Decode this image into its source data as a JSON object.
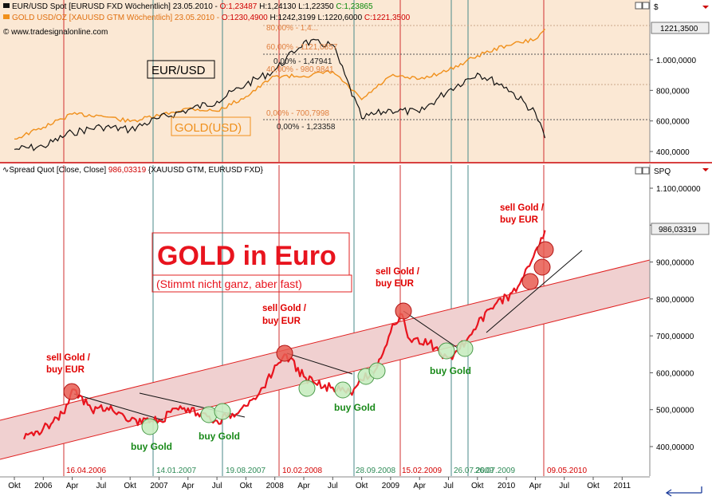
{
  "top_pane": {
    "legend_eur": "EUR/USD Spot [EURUSD FXD  Wöchentlich] 23.05.2010 - ",
    "legend_eur_o": "O:1,23487",
    "legend_eur_h": " H:1,24130",
    "legend_eur_l": " L:1,22350",
    "legend_eur_c": " C:1,23865",
    "legend_gold": "GOLD USD/OZ [XAUUSD GTM  Wöchentlich] 23.05.2010 - ",
    "legend_gold_o": "O:1230,4900",
    "legend_gold_h": " H:1242,3199",
    "legend_gold_l": " L:1220,6000",
    "legend_gold_c": " C:1221,3500",
    "copyright": "© www.tradesignalonline.com",
    "label_eur": "EUR/USD",
    "label_gold": "GOLD(USD)",
    "axis_unit": "$",
    "last_value": "1221,3500",
    "y_ticks": [
      "1.000,0000",
      "800,0000",
      "600,0000",
      "400,0000"
    ],
    "fib_labels": [
      "80,00% - 1,4...",
      "60,00% - 1121,0857",
      "0,00% - 1,47941",
      "40,00% - 980,9841",
      "0,00% - 700,7998",
      "0,00% - 1,23358"
    ]
  },
  "bottom_pane": {
    "header": "Spread Quot [Close, Close] ",
    "header_value": "986,03319",
    "header_suffix": " {XAUUSD GTM, EURUSD FXD}",
    "axis_unit": "SPQ",
    "last_value": "986,03319",
    "y_ticks": [
      "1.100,00000",
      "1.000,00000",
      "900,00000",
      "800,00000",
      "700,00000",
      "600,00000",
      "500,00000",
      "400,00000"
    ],
    "title": "GOLD in Euro",
    "subtitle": "(Stimmt nicht ganz, aber fast)",
    "sell_labels": [
      {
        "line1": "sell Gold /",
        "line2": "buy EUR"
      },
      {
        "line1": "sell Gold /",
        "line2": "buy EUR"
      },
      {
        "line1": "sell Gold /",
        "line2": "buy EUR"
      },
      {
        "line1": "sell Gold /",
        "line2": "buy EUR"
      }
    ],
    "buy_labels": [
      "buy Gold",
      "buy Gold",
      "buy Gold",
      "buy Gold"
    ],
    "date_labels_red": [
      "16.04.2006",
      "10.02.2008",
      "15.02.2009",
      "09.05.2010"
    ],
    "date_labels_green": [
      "14.01.2007",
      "19.08.2007",
      "28.09.2008",
      "26.07.2009",
      "26.07.2009"
    ]
  },
  "x_axis": {
    "labels": [
      "Okt",
      "2006",
      "Apr",
      "Jul",
      "Okt",
      "2007",
      "Apr",
      "Jul",
      "Okt",
      "2008",
      "Apr",
      "Jul",
      "Okt",
      "2009",
      "Apr",
      "Jul",
      "Okt",
      "2010",
      "Apr",
      "Jul",
      "Okt",
      "2011"
    ]
  },
  "colors": {
    "eurusd": "#111111",
    "gold": "#f0901c",
    "spread": "#e8141e",
    "channel": "#e02020",
    "buy": "#4aa84a",
    "sell": "#e03030"
  },
  "chart_data": {
    "type": "line",
    "top": {
      "series": [
        {
          "name": "EUR/USD Spot",
          "x": [
            "2005-10",
            "2006-01",
            "2006-04",
            "2006-07",
            "2006-10",
            "2007-01",
            "2007-04",
            "2007-07",
            "2007-10",
            "2008-01",
            "2008-04",
            "2008-07",
            "2008-10",
            "2009-01",
            "2009-04",
            "2009-07",
            "2009-10",
            "2010-01",
            "2010-04",
            "2010-05"
          ],
          "y": [
            1.2,
            1.21,
            1.26,
            1.28,
            1.27,
            1.31,
            1.34,
            1.37,
            1.43,
            1.48,
            1.58,
            1.57,
            1.31,
            1.34,
            1.33,
            1.41,
            1.47,
            1.42,
            1.33,
            1.24
          ]
        },
        {
          "name": "GOLD USD/OZ",
          "x": [
            "2005-10",
            "2006-01",
            "2006-04",
            "2006-07",
            "2006-10",
            "2007-01",
            "2007-04",
            "2007-07",
            "2007-10",
            "2008-01",
            "2008-04",
            "2008-07",
            "2008-10",
            "2009-01",
            "2009-04",
            "2009-07",
            "2009-10",
            "2010-01",
            "2010-04",
            "2010-05"
          ],
          "y": [
            470,
            550,
            640,
            630,
            590,
            630,
            680,
            660,
            760,
            900,
            900,
            930,
            740,
            900,
            880,
            940,
            1040,
            1110,
            1150,
            1221
          ]
        }
      ]
    },
    "bottom": {
      "series": [
        {
          "name": "Spread Quot",
          "x": [
            "2005-11",
            "2006-01",
            "2006-03",
            "2006-04",
            "2006-06",
            "2006-08",
            "2006-10",
            "2006-12",
            "2007-01",
            "2007-03",
            "2007-05",
            "2007-07",
            "2007-08",
            "2007-10",
            "2007-12",
            "2008-01",
            "2008-02",
            "2008-04",
            "2008-06",
            "2008-08",
            "2008-09",
            "2008-10",
            "2008-11",
            "2008-12",
            "2009-01",
            "2009-02",
            "2009-03",
            "2009-05",
            "2009-07",
            "2009-08",
            "2009-10",
            "2009-12",
            "2010-02",
            "2010-03",
            "2010-04",
            "2010-05"
          ],
          "y": [
            420,
            450,
            490,
            555,
            500,
            510,
            470,
            465,
            470,
            500,
            490,
            470,
            480,
            510,
            560,
            620,
            650,
            590,
            560,
            560,
            540,
            580,
            600,
            640,
            710,
            760,
            690,
            680,
            640,
            660,
            730,
            790,
            820,
            880,
            930,
            986
          ]
        }
      ],
      "ylim": [
        350,
        1150
      ]
    }
  }
}
